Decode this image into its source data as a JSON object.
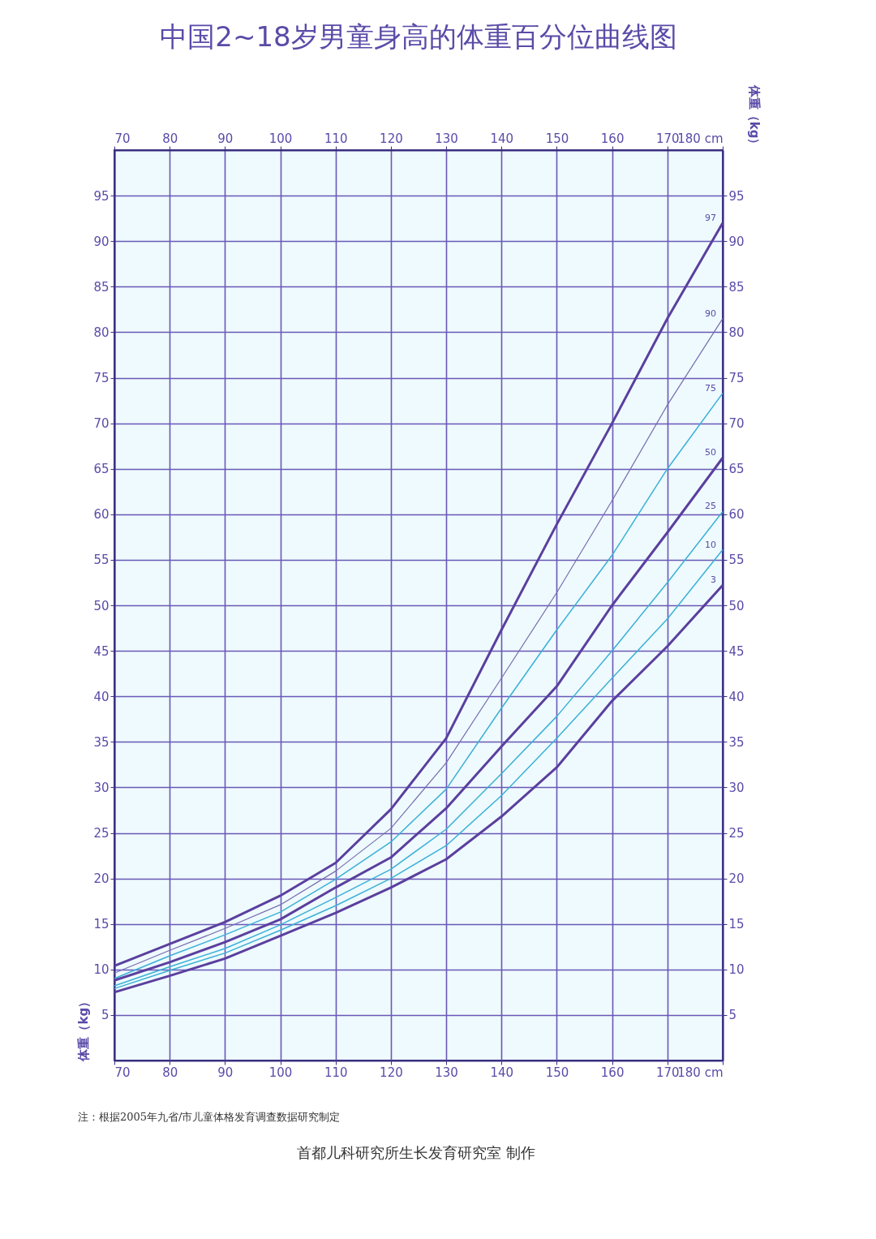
{
  "chart_data": {
    "type": "line",
    "title": "中国2~18岁男童身高的体重百分位曲线图",
    "ylabel": "体重（kg）",
    "y2label": "体重（kg）",
    "x": [
      70,
      80,
      90,
      100,
      110,
      120,
      130,
      140,
      150,
      160,
      170,
      180
    ],
    "series": [
      {
        "name": "97",
        "color": "#5b3f9e",
        "values": [
          10.4,
          12.8,
          15.2,
          18.1,
          21.7,
          27.6,
          35.4,
          47.3,
          58.9,
          70.0,
          81.5,
          92.0
        ]
      },
      {
        "name": "90",
        "color": "#7a6bb0",
        "values": [
          9.6,
          12.1,
          14.5,
          17.1,
          20.8,
          25.5,
          32.7,
          42.0,
          51.4,
          61.5,
          72.0,
          81.5
        ]
      },
      {
        "name": "75",
        "color": "#3bb0d6",
        "values": [
          9.0,
          11.5,
          13.8,
          16.3,
          19.9,
          24.0,
          29.8,
          38.7,
          47.3,
          55.5,
          65.0,
          73.3
        ]
      },
      {
        "name": "50",
        "color": "#5b3f9e",
        "values": [
          8.8,
          10.8,
          13.0,
          15.5,
          19.0,
          22.3,
          27.7,
          34.5,
          41.1,
          50.0,
          58.0,
          66.2
        ]
      },
      {
        "name": "25",
        "color": "#3bb0d6",
        "values": [
          8.2,
          10.3,
          12.3,
          14.9,
          17.9,
          21.0,
          25.4,
          31.5,
          37.8,
          45.0,
          52.5,
          60.3
        ]
      },
      {
        "name": "10",
        "color": "#3bb0d6",
        "values": [
          7.9,
          9.9,
          11.8,
          14.3,
          17.0,
          20.0,
          23.6,
          29.1,
          35.4,
          42.0,
          48.5,
          56.1
        ]
      },
      {
        "name": "3",
        "color": "#5b3f9e",
        "values": [
          7.5,
          9.3,
          11.2,
          13.7,
          16.2,
          19.0,
          22.1,
          26.8,
          32.2,
          39.5,
          45.5,
          52.2
        ]
      }
    ],
    "xlim": [
      70,
      180
    ],
    "xticks": [
      70,
      80,
      90,
      100,
      110,
      120,
      130,
      140,
      150,
      160,
      170,
      {
        "value": 180,
        "label": "180 cm"
      }
    ],
    "x2lim": [
      70,
      180
    ],
    "x2ticks": [
      70,
      80,
      90,
      100,
      110,
      120,
      130,
      140,
      150,
      160,
      170,
      {
        "value": 180,
        "label": "180 cm"
      }
    ],
    "ylim": [
      0,
      100
    ],
    "yticks": [
      5,
      10,
      15,
      20,
      25,
      30,
      35,
      40,
      45,
      50,
      55,
      60,
      65,
      70,
      75,
      80,
      85,
      90,
      95
    ],
    "y2lim": [
      0,
      100
    ],
    "y2ticks": [
      5,
      10,
      15,
      20,
      25,
      30,
      35,
      40,
      45,
      50,
      55,
      60,
      65,
      70,
      75,
      80,
      85,
      90,
      95
    ],
    "grid": true,
    "legend": false,
    "marker": "none",
    "line_style": "solid",
    "annotations": [
      "注：根据2005年九省/市儿童体格发育调查数据研究制定",
      "首都儿科研究所生长发育研究室 制作"
    ]
  }
}
